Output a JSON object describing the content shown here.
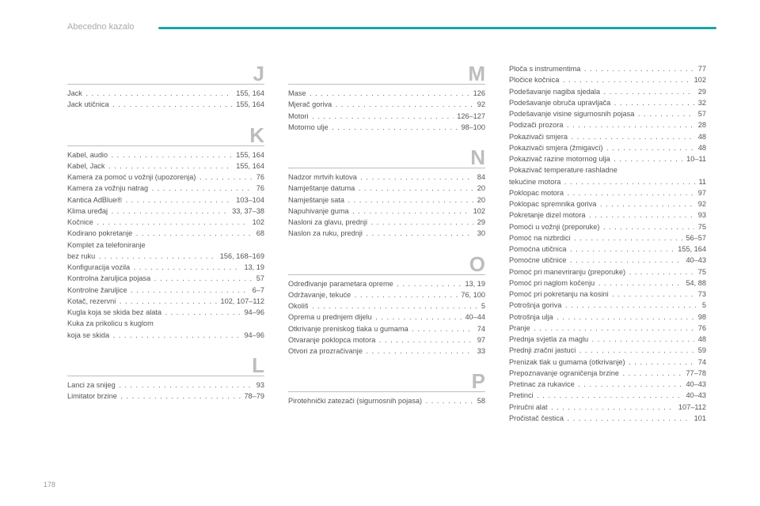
{
  "header": {
    "title": "Abecedno kazalo"
  },
  "pageNumber": "178",
  "colors": {
    "accent": "#1aa5a5",
    "text": "#555555",
    "letter": "#bdbdbd",
    "headerText": "#aaaaaa",
    "background": "#ffffff"
  },
  "columns": [
    {
      "sections": [
        {
          "letter": "J",
          "first": true,
          "entries": [
            {
              "label": "Jack",
              "page": "155, 164"
            },
            {
              "label": "Jack utičnica",
              "page": "155, 164"
            }
          ]
        },
        {
          "letter": "K",
          "entries": [
            {
              "label": "Kabel, audio",
              "page": "155, 164"
            },
            {
              "label": "Kabel, Jack",
              "page": "155, 164"
            },
            {
              "label": "Kamera za pomoć u vožnji (upozorenja)",
              "page": "76"
            },
            {
              "label": "Kamera za vožnju natrag",
              "page": "76"
            },
            {
              "label": "Kantica AdBlue®",
              "page": "103–104"
            },
            {
              "label": "Klima uređaj",
              "page": "33, 37–38"
            },
            {
              "label": "Kočnice",
              "page": "102"
            },
            {
              "label": "Kodirano pokretanje",
              "page": "68"
            },
            {
              "label": "Komplet za telefoniranje",
              "cont": true
            },
            {
              "label": "bez ruku",
              "page": "156, 168–169"
            },
            {
              "label": "Konfiguracija vozila",
              "page": "13, 19"
            },
            {
              "label": "Kontrolna žaruljica pojasa",
              "page": "57"
            },
            {
              "label": "Kontrolne žaruljice",
              "page": "6–7"
            },
            {
              "label": "Kotač, rezervni",
              "page": "102, 107–112"
            },
            {
              "label": "Kugla koja se skida bez alata",
              "page": "94–96"
            },
            {
              "label": "Kuka za prikolicu s kuglom",
              "cont": true
            },
            {
              "label": "koja se skida",
              "page": "94–96"
            }
          ]
        },
        {
          "letter": "L",
          "entries": [
            {
              "label": "Lanci za snijeg",
              "page": "93"
            },
            {
              "label": "Limitator brzine",
              "page": "78–79"
            }
          ]
        }
      ]
    },
    {
      "sections": [
        {
          "letter": "M",
          "first": true,
          "entries": [
            {
              "label": "Mase",
              "page": "126"
            },
            {
              "label": "Mjerač goriva",
              "page": "92"
            },
            {
              "label": "Motori",
              "page": "126–127"
            },
            {
              "label": "Motorno ulje",
              "page": "98–100"
            }
          ]
        },
        {
          "letter": "N",
          "entries": [
            {
              "label": "Nadzor mrtvih kutova",
              "page": "84"
            },
            {
              "label": "Namještanje datuma",
              "page": "20"
            },
            {
              "label": "Namještanje sata",
              "page": "20"
            },
            {
              "label": "Napuhivanje guma",
              "page": "102"
            },
            {
              "label": "Nasloni za glavu, prednji",
              "page": "29"
            },
            {
              "label": "Naslon za ruku, prednji",
              "page": "30"
            }
          ]
        },
        {
          "letter": "O",
          "entries": [
            {
              "label": "Određivanje parametara opreme",
              "page": "13, 19"
            },
            {
              "label": "Održavanje, tekuće",
              "page": "76, 100"
            },
            {
              "label": "Okoliš",
              "page": "5"
            },
            {
              "label": "Oprema u prednjem dijelu",
              "page": "40–44"
            },
            {
              "label": "Otkrivanje preniskog tlaka u gumama",
              "page": "74"
            },
            {
              "label": "Otvaranje poklopca motora",
              "page": "97"
            },
            {
              "label": "Otvori za prozračivanje",
              "page": "33"
            }
          ]
        },
        {
          "letter": "P",
          "entries": [
            {
              "label": "Pirotehnički zatezači (sigurnosnih pojasa)",
              "page": "58"
            }
          ]
        }
      ]
    },
    {
      "sections": [
        {
          "letter": "",
          "first": true,
          "entries": [
            {
              "label": "Ploča s instrumentima",
              "page": "77"
            },
            {
              "label": "Pločice kočnica",
              "page": "102"
            },
            {
              "label": "Podešavanje nagiba sjedala",
              "page": "29"
            },
            {
              "label": "Podešavanje obruča upravljača",
              "page": "32"
            },
            {
              "label": "Podešavanje visine sigurnosnih pojasa",
              "page": "57"
            },
            {
              "label": "Podizači prozora",
              "page": "28"
            },
            {
              "label": "Pokazivači smjera",
              "page": "48"
            },
            {
              "label": "Pokazivači smjera (žmigavci)",
              "page": "48"
            },
            {
              "label": "Pokazivač razine motornog ulja",
              "page": "10–11"
            },
            {
              "label": "Pokazivač temperature rashladne",
              "cont": true
            },
            {
              "label": "tekućine motora",
              "page": "11"
            },
            {
              "label": "Poklopac motora",
              "page": "97"
            },
            {
              "label": "Poklopac spremnika goriva",
              "page": "92"
            },
            {
              "label": "Pokretanje dizel motora",
              "page": "93"
            },
            {
              "label": "Pomoći u vožnji (preporuke)",
              "page": "75"
            },
            {
              "label": "Pomoć na nizbrdici",
              "page": "56–57"
            },
            {
              "label": "Pomoćna utičnica",
              "page": "155, 164"
            },
            {
              "label": "Pomoćne utičnice",
              "page": "40–43"
            },
            {
              "label": "Pomoć pri manevriranju (preporuke)",
              "page": "75"
            },
            {
              "label": "Pomoć pri naglom kočenju",
              "page": "54, 88"
            },
            {
              "label": "Pomoć pri pokretanju na kosini",
              "page": "73"
            },
            {
              "label": "Potrošnja goriva",
              "page": "5"
            },
            {
              "label": "Potrošnja ulja",
              "page": "98"
            },
            {
              "label": "Pranje",
              "page": "76"
            },
            {
              "label": "Prednja svjetla za maglu",
              "page": "48"
            },
            {
              "label": "Prednji zračni jastuci",
              "page": "59"
            },
            {
              "label": "Prenizak tlak u gumama (otkrivanje)",
              "page": "74"
            },
            {
              "label": "Prepoznavanje ograničenja brzine",
              "page": "77–78"
            },
            {
              "label": "Pretinac za rukavice",
              "page": "40–43"
            },
            {
              "label": "Pretinci",
              "page": "40–43"
            },
            {
              "label": "Priručni alat",
              "page": "107–112"
            },
            {
              "label": "Pročistač čestica",
              "page": "101"
            }
          ]
        }
      ]
    }
  ]
}
